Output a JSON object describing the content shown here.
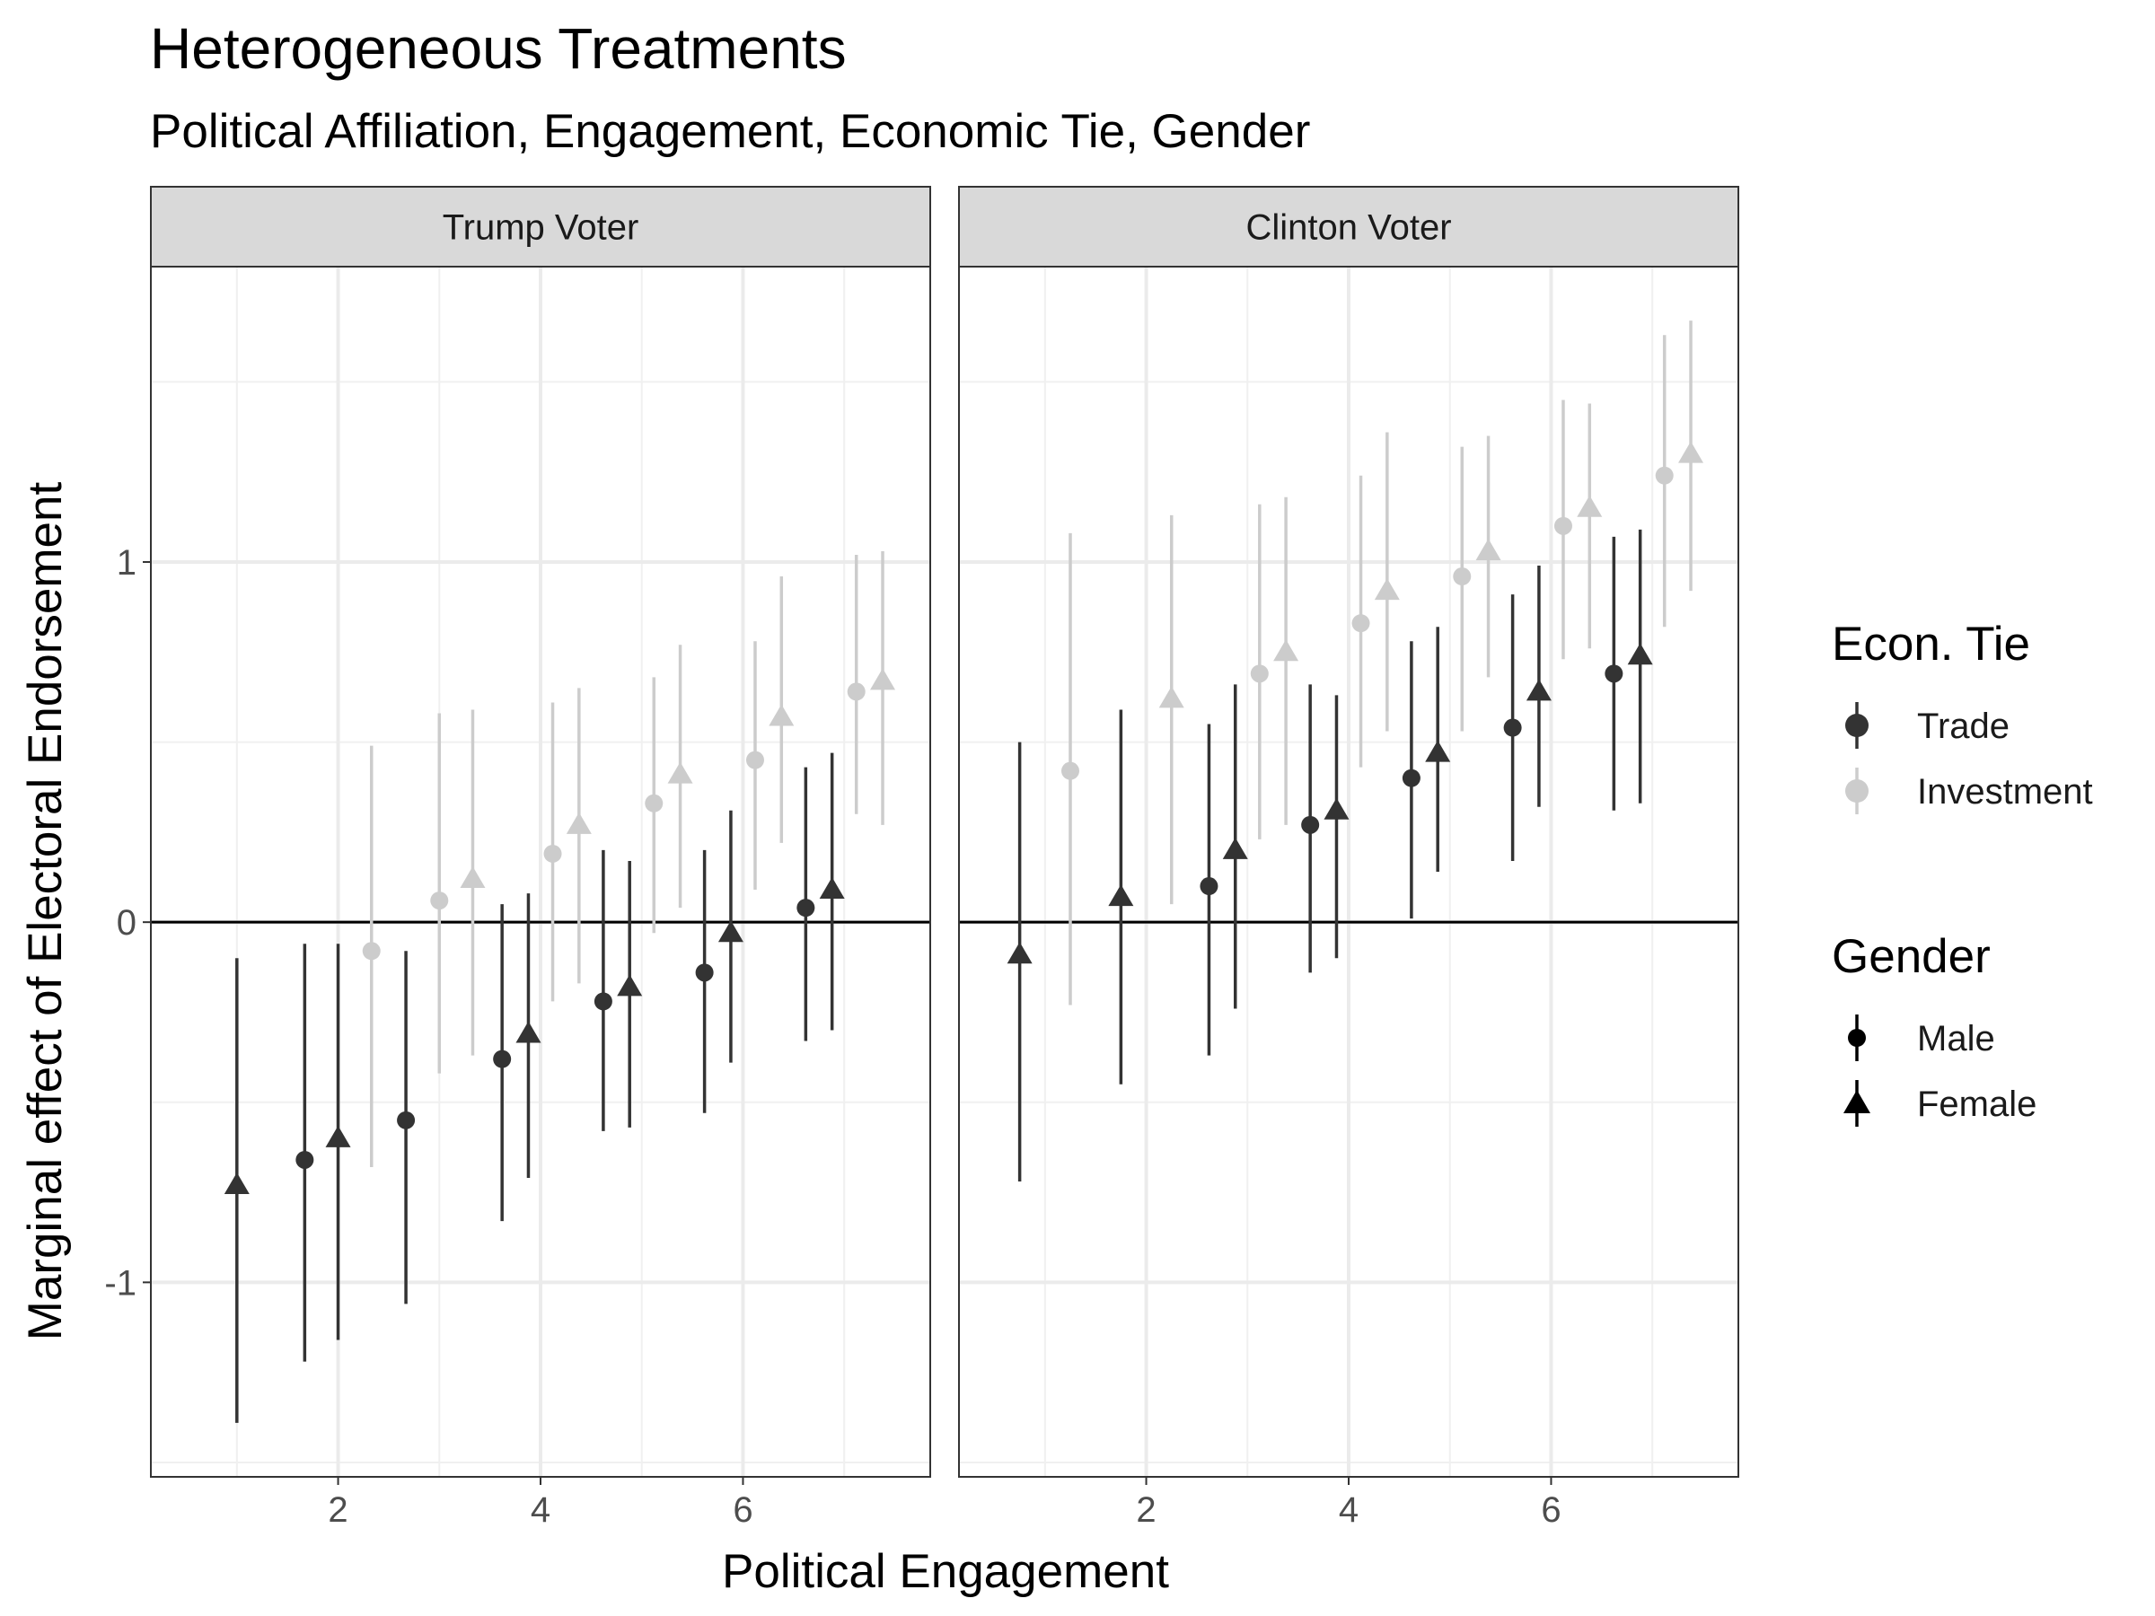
{
  "chart_data": {
    "type": "scatter",
    "title": "Heterogeneous Treatments",
    "subtitle": "Political Affiliation, Engagement, Economic Tie, Gender",
    "xlabel": "Political Engagement",
    "ylabel": "Marginal effect of Electoral Endorsement",
    "xlim": [
      0.15,
      7.85
    ],
    "ylim": [
      -1.54,
      1.82
    ],
    "x_ticks": [
      2,
      4,
      6
    ],
    "x_tick_labels": [
      "2",
      "4",
      "6"
    ],
    "y_ticks": [
      -1,
      0,
      1
    ],
    "y_tick_labels": [
      "-1",
      "0",
      "1"
    ],
    "reference_line_y": 0,
    "grid": true,
    "legend_position": "right",
    "legends": [
      {
        "title": "Econ. Tie",
        "items": [
          {
            "label": "Trade",
            "color": "#333333",
            "shape": "circle"
          },
          {
            "label": "Investment",
            "color": "#cccccc",
            "shape": "circle"
          }
        ]
      },
      {
        "title": "Gender",
        "items": [
          {
            "label": "Male",
            "color": "#000000",
            "shape": "circle"
          },
          {
            "label": "Female",
            "color": "#000000",
            "shape": "triangle"
          }
        ]
      }
    ],
    "colors": {
      "Trade": "#333333",
      "Investment": "#cccccc"
    },
    "panels": [
      {
        "label": "Trump Voter",
        "points": [
          {
            "x": 1.0,
            "y": -0.73,
            "lo": -1.39,
            "hi": -0.1,
            "tie": "Trade",
            "gender": "Female"
          },
          {
            "x": 1.67,
            "y": -0.66,
            "lo": -1.22,
            "hi": -0.06,
            "tie": "Trade",
            "gender": "Male"
          },
          {
            "x": 2.0,
            "y": -0.6,
            "lo": -1.16,
            "hi": -0.06,
            "tie": "Trade",
            "gender": "Female"
          },
          {
            "x": 2.33,
            "y": -0.08,
            "lo": -0.68,
            "hi": 0.49,
            "tie": "Investment",
            "gender": "Male"
          },
          {
            "x": 2.67,
            "y": -0.55,
            "lo": -1.06,
            "hi": -0.08,
            "tie": "Trade",
            "gender": "Male"
          },
          {
            "x": 3.0,
            "y": 0.06,
            "lo": -0.42,
            "hi": 0.58,
            "tie": "Investment",
            "gender": "Male"
          },
          {
            "x": 3.33,
            "y": 0.12,
            "lo": -0.37,
            "hi": 0.59,
            "tie": "Investment",
            "gender": "Female"
          },
          {
            "x": 3.62,
            "y": -0.38,
            "lo": -0.83,
            "hi": 0.05,
            "tie": "Trade",
            "gender": "Male"
          },
          {
            "x": 3.88,
            "y": -0.31,
            "lo": -0.71,
            "hi": 0.08,
            "tie": "Trade",
            "gender": "Female"
          },
          {
            "x": 4.12,
            "y": 0.19,
            "lo": -0.22,
            "hi": 0.61,
            "tie": "Investment",
            "gender": "Male"
          },
          {
            "x": 4.38,
            "y": 0.27,
            "lo": -0.17,
            "hi": 0.65,
            "tie": "Investment",
            "gender": "Female"
          },
          {
            "x": 4.62,
            "y": -0.22,
            "lo": -0.58,
            "hi": 0.2,
            "tie": "Trade",
            "gender": "Male"
          },
          {
            "x": 4.88,
            "y": -0.18,
            "lo": -0.57,
            "hi": 0.17,
            "tie": "Trade",
            "gender": "Female"
          },
          {
            "x": 5.12,
            "y": 0.33,
            "lo": -0.03,
            "hi": 0.68,
            "tie": "Investment",
            "gender": "Male"
          },
          {
            "x": 5.38,
            "y": 0.41,
            "lo": 0.04,
            "hi": 0.77,
            "tie": "Investment",
            "gender": "Female"
          },
          {
            "x": 5.62,
            "y": -0.14,
            "lo": -0.53,
            "hi": 0.2,
            "tie": "Trade",
            "gender": "Male"
          },
          {
            "x": 5.88,
            "y": -0.03,
            "lo": -0.39,
            "hi": 0.31,
            "tie": "Trade",
            "gender": "Female"
          },
          {
            "x": 6.12,
            "y": 0.45,
            "lo": 0.09,
            "hi": 0.78,
            "tie": "Investment",
            "gender": "Male"
          },
          {
            "x": 6.38,
            "y": 0.57,
            "lo": 0.22,
            "hi": 0.96,
            "tie": "Investment",
            "gender": "Female"
          },
          {
            "x": 6.62,
            "y": 0.04,
            "lo": -0.33,
            "hi": 0.43,
            "tie": "Trade",
            "gender": "Male"
          },
          {
            "x": 6.88,
            "y": 0.09,
            "lo": -0.3,
            "hi": 0.47,
            "tie": "Trade",
            "gender": "Female"
          },
          {
            "x": 7.12,
            "y": 0.64,
            "lo": 0.3,
            "hi": 1.02,
            "tie": "Investment",
            "gender": "Male"
          },
          {
            "x": 7.38,
            "y": 0.67,
            "lo": 0.27,
            "hi": 1.03,
            "tie": "Investment",
            "gender": "Female"
          }
        ]
      },
      {
        "label": "Clinton Voter",
        "points": [
          {
            "x": 0.75,
            "y": -0.09,
            "lo": -0.72,
            "hi": 0.5,
            "tie": "Trade",
            "gender": "Female"
          },
          {
            "x": 1.25,
            "y": 0.42,
            "lo": -0.23,
            "hi": 1.08,
            "tie": "Investment",
            "gender": "Male"
          },
          {
            "x": 1.75,
            "y": 0.07,
            "lo": -0.45,
            "hi": 0.59,
            "tie": "Trade",
            "gender": "Female"
          },
          {
            "x": 2.25,
            "y": 0.62,
            "lo": 0.05,
            "hi": 1.13,
            "tie": "Investment",
            "gender": "Female"
          },
          {
            "x": 2.62,
            "y": 0.1,
            "lo": -0.37,
            "hi": 0.55,
            "tie": "Trade",
            "gender": "Male"
          },
          {
            "x": 2.88,
            "y": 0.2,
            "lo": -0.24,
            "hi": 0.66,
            "tie": "Trade",
            "gender": "Female"
          },
          {
            "x": 3.12,
            "y": 0.69,
            "lo": 0.23,
            "hi": 1.16,
            "tie": "Investment",
            "gender": "Male"
          },
          {
            "x": 3.38,
            "y": 0.75,
            "lo": 0.27,
            "hi": 1.18,
            "tie": "Investment",
            "gender": "Female"
          },
          {
            "x": 3.62,
            "y": 0.27,
            "lo": -0.14,
            "hi": 0.66,
            "tie": "Trade",
            "gender": "Male"
          },
          {
            "x": 3.88,
            "y": 0.31,
            "lo": -0.1,
            "hi": 0.63,
            "tie": "Trade",
            "gender": "Female"
          },
          {
            "x": 4.12,
            "y": 0.83,
            "lo": 0.43,
            "hi": 1.24,
            "tie": "Investment",
            "gender": "Male"
          },
          {
            "x": 4.38,
            "y": 0.92,
            "lo": 0.53,
            "hi": 1.36,
            "tie": "Investment",
            "gender": "Female"
          },
          {
            "x": 4.62,
            "y": 0.4,
            "lo": 0.01,
            "hi": 0.78,
            "tie": "Trade",
            "gender": "Male"
          },
          {
            "x": 4.88,
            "y": 0.47,
            "lo": 0.14,
            "hi": 0.82,
            "tie": "Trade",
            "gender": "Female"
          },
          {
            "x": 5.12,
            "y": 0.96,
            "lo": 0.53,
            "hi": 1.32,
            "tie": "Investment",
            "gender": "Male"
          },
          {
            "x": 5.38,
            "y": 1.03,
            "lo": 0.68,
            "hi": 1.35,
            "tie": "Investment",
            "gender": "Female"
          },
          {
            "x": 5.62,
            "y": 0.54,
            "lo": 0.17,
            "hi": 0.91,
            "tie": "Trade",
            "gender": "Male"
          },
          {
            "x": 5.88,
            "y": 0.64,
            "lo": 0.32,
            "hi": 0.99,
            "tie": "Trade",
            "gender": "Female"
          },
          {
            "x": 6.12,
            "y": 1.1,
            "lo": 0.73,
            "hi": 1.45,
            "tie": "Investment",
            "gender": "Male"
          },
          {
            "x": 6.38,
            "y": 1.15,
            "lo": 0.76,
            "hi": 1.44,
            "tie": "Investment",
            "gender": "Female"
          },
          {
            "x": 6.62,
            "y": 0.69,
            "lo": 0.31,
            "hi": 1.07,
            "tie": "Trade",
            "gender": "Male"
          },
          {
            "x": 6.88,
            "y": 0.74,
            "lo": 0.33,
            "hi": 1.09,
            "tie": "Trade",
            "gender": "Female"
          },
          {
            "x": 7.12,
            "y": 1.24,
            "lo": 0.82,
            "hi": 1.63,
            "tie": "Investment",
            "gender": "Male"
          },
          {
            "x": 7.38,
            "y": 1.3,
            "lo": 0.92,
            "hi": 1.67,
            "tie": "Investment",
            "gender": "Female"
          }
        ]
      }
    ]
  }
}
